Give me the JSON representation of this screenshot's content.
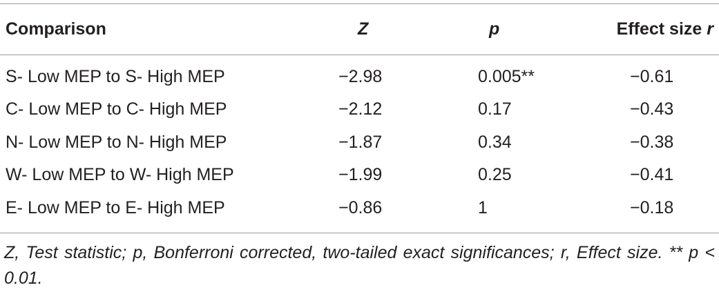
{
  "table": {
    "header": [
      [
        {
          "text": "Comparison"
        }
      ],
      [
        {
          "text": "Z",
          "italic": true
        }
      ],
      [
        {
          "text": "p",
          "italic": true
        }
      ],
      [
        {
          "text": "Effect size "
        },
        {
          "text": "r",
          "italic": true
        }
      ]
    ],
    "rows": [
      [
        "S- Low MEP to S- High MEP",
        "−2.98",
        "0.005**",
        "−0.61"
      ],
      [
        "C- Low MEP to C- High MEP",
        "−2.12",
        "0.17",
        "−0.43"
      ],
      [
        "N- Low MEP to N- High MEP",
        "−1.87",
        "0.34",
        "−0.38"
      ],
      [
        "W- Low MEP to W- High MEP",
        "−1.99",
        "0.25",
        "−0.41"
      ],
      [
        "E- Low MEP to E- High MEP",
        "−0.86",
        "1",
        "−0.18"
      ]
    ],
    "footnote": "Z, Test statistic; p, Bonferroni corrected, two-tailed exact significances; r, Effect size. ** p < 0.01."
  }
}
